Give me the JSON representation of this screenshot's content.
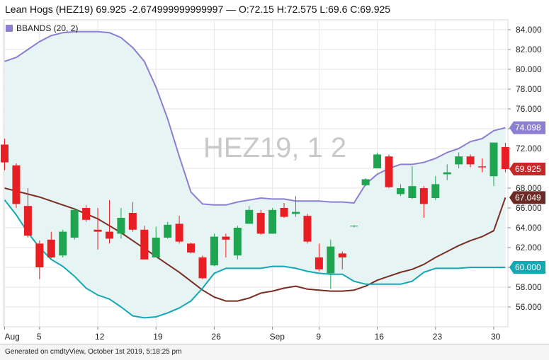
{
  "header": {
    "title": "Lean Hogs (HEZ19) 69.925 -2.674999999999997 — O:72.15 H:72.575 L:69.6 C:69.925"
  },
  "legend": {
    "label": "BBANDS (20, 2)",
    "color": "#8b7fd4"
  },
  "footer": {
    "text": "Generated on cmdtyView, October 1st 2019, 5:18:25 pm"
  },
  "chart_data": {
    "type": "candlestick",
    "watermark": "HEZ19, 1 2",
    "ylim": [
      54,
      85
    ],
    "y_ticks": [
      "56.000",
      "58.000",
      "60.000",
      "62.000",
      "64.000",
      "66.000",
      "68.000",
      "70.000",
      "72.000",
      "74.000",
      "76.000",
      "78.000",
      "80.000",
      "82.000",
      "84.000"
    ],
    "x_ticks": [
      {
        "label": "Aug",
        "index": 0
      },
      {
        "label": "5",
        "index": 3
      },
      {
        "label": "12",
        "index": 8
      },
      {
        "label": "19",
        "index": 13
      },
      {
        "label": "26",
        "index": 18
      },
      {
        "label": "Sep",
        "index": 23
      },
      {
        "label": "9",
        "index": 27
      },
      {
        "label": "16",
        "index": 32
      },
      {
        "label": "23",
        "index": 37
      },
      {
        "label": "30",
        "index": 42
      }
    ],
    "grid": true,
    "colors": {
      "up": "#1fa550",
      "down": "#e81e25",
      "upper_band": "#8b7fd4",
      "middle_band": "#7a2d22",
      "lower_band": "#14a8b4",
      "band_fill": "#e6f5f4"
    },
    "candles": [
      {
        "o": 72.4,
        "h": 73.0,
        "l": 69.8,
        "c": 70.6
      },
      {
        "o": 70.3,
        "h": 70.5,
        "l": 66.0,
        "c": 66.4
      },
      {
        "o": 66.2,
        "h": 68.0,
        "l": 63.0,
        "c": 63.2
      },
      {
        "o": 62.4,
        "h": 62.7,
        "l": 58.8,
        "c": 60.0
      },
      {
        "o": 62.8,
        "h": 63.6,
        "l": 60.9,
        "c": 61.0
      },
      {
        "o": 61.2,
        "h": 63.8,
        "l": 61.0,
        "c": 63.6
      },
      {
        "o": 63.0,
        "h": 66.0,
        "l": 62.8,
        "c": 65.8
      },
      {
        "o": 66.0,
        "h": 66.3,
        "l": 64.6,
        "c": 64.8
      },
      {
        "o": 63.8,
        "h": 66.0,
        "l": 61.8,
        "c": 63.6
      },
      {
        "o": 63.6,
        "h": 66.8,
        "l": 62.4,
        "c": 62.9
      },
      {
        "o": 63.4,
        "h": 66.0,
        "l": 62.9,
        "c": 65.0
      },
      {
        "o": 65.5,
        "h": 66.6,
        "l": 63.6,
        "c": 63.8
      },
      {
        "o": 63.8,
        "h": 64.2,
        "l": 61.0,
        "c": 60.8
      },
      {
        "o": 61.0,
        "h": 64.1,
        "l": 61.0,
        "c": 63.0
      },
      {
        "o": 63.0,
        "h": 64.6,
        "l": 62.9,
        "c": 64.3
      },
      {
        "o": 64.4,
        "h": 65.2,
        "l": 62.4,
        "c": 62.6
      },
      {
        "o": 62.4,
        "h": 62.5,
        "l": 61.4,
        "c": 61.5
      },
      {
        "o": 61.0,
        "h": 61.2,
        "l": 58.8,
        "c": 58.9
      },
      {
        "o": 60.2,
        "h": 63.4,
        "l": 60.1,
        "c": 63.1
      },
      {
        "o": 63.1,
        "h": 63.4,
        "l": 61.0,
        "c": 62.8
      },
      {
        "o": 61.2,
        "h": 64.2,
        "l": 60.8,
        "c": 64.0
      },
      {
        "o": 64.4,
        "h": 66.2,
        "l": 64.4,
        "c": 65.8
      },
      {
        "o": 65.5,
        "h": 65.8,
        "l": 63.3,
        "c": 63.4
      },
      {
        "o": 63.4,
        "h": 66.0,
        "l": 63.4,
        "c": 65.8
      },
      {
        "o": 66.0,
        "h": 66.5,
        "l": 65.0,
        "c": 65.1
      },
      {
        "o": 65.4,
        "h": 67.2,
        "l": 65.1,
        "c": 65.6
      },
      {
        "o": 65.2,
        "h": 65.4,
        "l": 62.4,
        "c": 62.6
      },
      {
        "o": 61.0,
        "h": 62.4,
        "l": 59.6,
        "c": 59.8
      },
      {
        "o": 59.4,
        "h": 62.8,
        "l": 57.8,
        "c": 62.1
      },
      {
        "o": 61.4,
        "h": 61.6,
        "l": 59.8,
        "c": 61.0
      },
      {
        "o": 64.15,
        "h": 64.25,
        "l": 64.05,
        "c": 64.2
      },
      {
        "o": 68.3,
        "h": 69.0,
        "l": 68.2,
        "c": 68.9
      },
      {
        "o": 70.0,
        "h": 71.6,
        "l": 70.0,
        "c": 71.4
      },
      {
        "o": 71.2,
        "h": 71.4,
        "l": 68.0,
        "c": 68.1
      },
      {
        "o": 67.4,
        "h": 68.4,
        "l": 67.2,
        "c": 68.0
      },
      {
        "o": 67.0,
        "h": 70.2,
        "l": 66.9,
        "c": 68.2
      },
      {
        "o": 68.0,
        "h": 68.2,
        "l": 65.0,
        "c": 66.4
      },
      {
        "o": 67.0,
        "h": 69.2,
        "l": 66.8,
        "c": 68.4
      },
      {
        "o": 69.4,
        "h": 70.4,
        "l": 68.8,
        "c": 69.6
      },
      {
        "o": 70.4,
        "h": 71.6,
        "l": 70.0,
        "c": 71.2
      },
      {
        "o": 71.2,
        "h": 71.4,
        "l": 70.1,
        "c": 70.4
      },
      {
        "o": 70.2,
        "h": 71.0,
        "l": 69.6,
        "c": 70.1
      },
      {
        "o": 69.2,
        "h": 72.6,
        "l": 68.2,
        "c": 72.6
      },
      {
        "o": 72.15,
        "h": 72.575,
        "l": 69.6,
        "c": 69.925
      }
    ],
    "upper_band": [
      80.8,
      81.2,
      82.0,
      82.8,
      83.4,
      83.7,
      83.8,
      83.8,
      83.8,
      83.7,
      83.2,
      82.2,
      80.8,
      78.2,
      75.0,
      71.2,
      67.6,
      66.4,
      66.3,
      66.3,
      66.6,
      66.8,
      67.0,
      66.9,
      66.9,
      66.7,
      66.7,
      66.7,
      66.6,
      66.6,
      66.5,
      68.4,
      69.4,
      70.0,
      70.4,
      70.4,
      70.6,
      71.0,
      71.6,
      72.0,
      72.7,
      73.0,
      73.8,
      74.098
    ],
    "middle_band": [
      68.0,
      67.7,
      67.4,
      67.1,
      66.7,
      66.3,
      65.9,
      65.4,
      64.9,
      64.2,
      63.5,
      62.7,
      61.9,
      61.1,
      60.3,
      59.5,
      58.6,
      57.7,
      57.0,
      56.6,
      56.6,
      56.9,
      57.4,
      57.6,
      57.9,
      58.1,
      57.8,
      57.7,
      57.6,
      57.6,
      57.7,
      58.1,
      58.7,
      59.1,
      59.5,
      59.8,
      60.3,
      61.0,
      61.6,
      62.2,
      62.7,
      63.1,
      63.7,
      67.049
    ],
    "lower_band": [
      66.8,
      65.3,
      63.5,
      62.0,
      60.8,
      60.1,
      59.1,
      57.9,
      57.2,
      56.8,
      56.0,
      55.1,
      54.9,
      55.0,
      55.4,
      55.9,
      56.6,
      57.9,
      59.4,
      59.9,
      59.9,
      59.9,
      59.9,
      60.1,
      60.1,
      59.9,
      59.6,
      59.4,
      59.3,
      59.3,
      58.6,
      58.3,
      58.3,
      58.3,
      58.3,
      58.6,
      59.5,
      59.9,
      59.9,
      59.9,
      60.0,
      60.0,
      60.0,
      60.0
    ],
    "price_tags": [
      {
        "label": "74.098",
        "value": 74.098,
        "color": "#8b7fd4"
      },
      {
        "label": "69.925",
        "value": 69.925,
        "color": "#c62828"
      },
      {
        "label": "67.049",
        "value": 67.049,
        "color": "#6d2a24"
      },
      {
        "label": "60.000",
        "value": 60.0,
        "color": "#14a8b4"
      }
    ]
  }
}
